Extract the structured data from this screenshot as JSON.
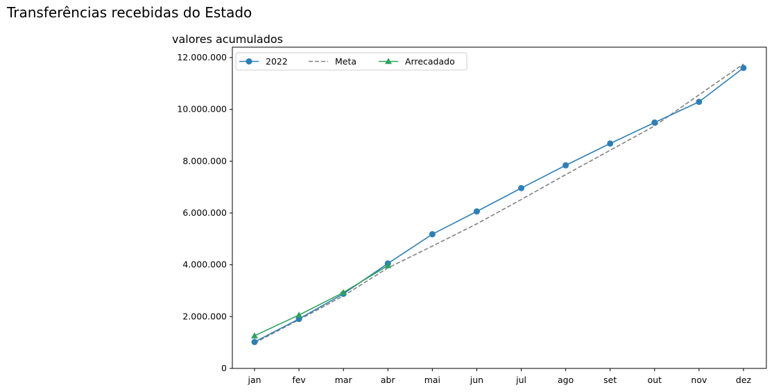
{
  "page_title": "Transferências recebidas do Estado",
  "chart_data": {
    "type": "line",
    "title": "valores acumulados",
    "xlabel": "",
    "ylabel": "",
    "categories": [
      "jan",
      "fev",
      "mar",
      "abr",
      "mai",
      "jun",
      "jul",
      "ago",
      "set",
      "out",
      "nov",
      "dez"
    ],
    "ylim": [
      0,
      12400000
    ],
    "yticks": [
      0,
      2000000,
      4000000,
      6000000,
      8000000,
      10000000,
      12000000
    ],
    "ytick_labels": [
      "0",
      "2.000.000",
      "4.000.000",
      "6.000.000",
      "8.000.000",
      "10.000.000",
      "12.000.000"
    ],
    "grid": false,
    "legend_position": "top-left",
    "series": [
      {
        "name": "2022",
        "color": "#2c7fb8",
        "marker": "circle",
        "dash": "solid",
        "values": [
          1020000,
          1910000,
          2880000,
          4050000,
          5180000,
          6060000,
          6960000,
          7840000,
          8680000,
          9490000,
          10290000,
          11600000
        ]
      },
      {
        "name": "Meta",
        "color": "#808080",
        "marker": "none",
        "dash": "dashed",
        "values": [
          980000,
          1880000,
          2800000,
          3880000,
          4720000,
          5580000,
          6520000,
          7480000,
          8420000,
          9360000,
          10560000,
          11750000
        ]
      },
      {
        "name": "Arrecadado",
        "color": "#2ca25f",
        "marker": "triangle",
        "dash": "solid",
        "values": [
          1260000,
          2060000,
          2930000,
          3970000,
          null,
          null,
          null,
          null,
          null,
          null,
          null,
          null
        ]
      }
    ]
  }
}
